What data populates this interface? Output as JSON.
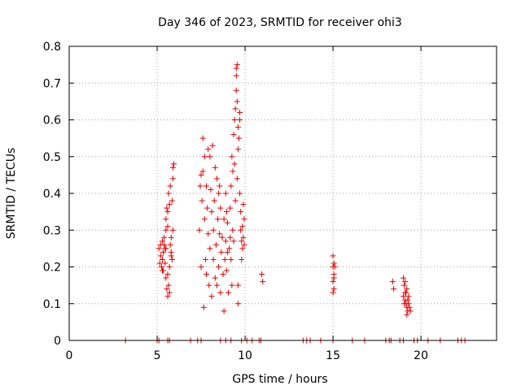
{
  "chart_data": {
    "type": "scatter",
    "title": "Day 346 of 2023, SRMTID for receiver ohi3",
    "xlabel": "GPS time / hours",
    "ylabel": "SRMTID / TECUs",
    "xlim": [
      0,
      24.3
    ],
    "ylim": [
      0,
      0.8
    ],
    "xticks": [
      0,
      5,
      10,
      15,
      20
    ],
    "xtick_labels": [
      "0",
      "5",
      "10",
      "15",
      "20"
    ],
    "yticks": [
      0,
      0.1,
      0.2,
      0.3,
      0.4,
      0.5,
      0.6,
      0.7,
      0.8
    ],
    "ytick_labels": [
      "0",
      "0.1",
      "0.2",
      "0.3",
      "0.4",
      "0.5",
      "0.6",
      "0.7",
      "0.8"
    ],
    "grid": true,
    "marker": "+",
    "color": "#e00000",
    "series": [
      {
        "name": "SRMTID",
        "points": [
          [
            5.1,
            0.25
          ],
          [
            5.15,
            0.21
          ],
          [
            5.2,
            0.26
          ],
          [
            5.2,
            0.23
          ],
          [
            5.25,
            0.2
          ],
          [
            5.3,
            0.27
          ],
          [
            5.3,
            0.22
          ],
          [
            5.35,
            0.24
          ],
          [
            5.35,
            0.19
          ],
          [
            5.4,
            0.26
          ],
          [
            5.4,
            0.28
          ],
          [
            5.45,
            0.21
          ],
          [
            5.5,
            0.33
          ],
          [
            5.5,
            0.3
          ],
          [
            5.5,
            0.25
          ],
          [
            5.55,
            0.36
          ],
          [
            5.55,
            0.14
          ],
          [
            5.6,
            0.12
          ],
          [
            5.6,
            0.18
          ],
          [
            5.6,
            0.31
          ],
          [
            5.65,
            0.4
          ],
          [
            5.65,
            0.15
          ],
          [
            5.7,
            0.37
          ],
          [
            5.7,
            0.13
          ],
          [
            5.75,
            0.42
          ],
          [
            5.75,
            0.26
          ],
          [
            5.8,
            0.24
          ],
          [
            5.8,
            0.28
          ],
          [
            5.85,
            0.38
          ],
          [
            5.9,
            0.44
          ],
          [
            5.9,
            0.47
          ],
          [
            5.95,
            0.48
          ],
          [
            5.9,
            0.3
          ],
          [
            5.85,
            0.22
          ],
          [
            5.7,
            0.2
          ],
          [
            5.5,
            0.17
          ],
          [
            5.6,
            0.35
          ],
          [
            5.8,
            0.23
          ],
          [
            5.45,
            0.25
          ],
          [
            5.3,
            0.19
          ],
          [
            7.4,
            0.3
          ],
          [
            7.45,
            0.42
          ],
          [
            7.5,
            0.45
          ],
          [
            7.5,
            0.2
          ],
          [
            7.55,
            0.38
          ],
          [
            7.6,
            0.55
          ],
          [
            7.6,
            0.46
          ],
          [
            7.65,
            0.09
          ],
          [
            7.7,
            0.5
          ],
          [
            7.7,
            0.33
          ],
          [
            7.75,
            0.22
          ],
          [
            7.8,
            0.18
          ],
          [
            7.8,
            0.42
          ],
          [
            7.85,
            0.36
          ],
          [
            7.9,
            0.29
          ],
          [
            7.9,
            0.52
          ],
          [
            7.95,
            0.15
          ],
          [
            8.0,
            0.5
          ],
          [
            8.0,
            0.25
          ],
          [
            8.05,
            0.41
          ],
          [
            8.1,
            0.35
          ],
          [
            8.1,
            0.12
          ],
          [
            8.15,
            0.53
          ],
          [
            8.2,
            0.3
          ],
          [
            8.2,
            0.22
          ],
          [
            8.25,
            0.38
          ],
          [
            8.3,
            0.47
          ],
          [
            8.3,
            0.17
          ],
          [
            8.35,
            0.26
          ],
          [
            8.4,
            0.44
          ],
          [
            8.4,
            0.15
          ],
          [
            8.45,
            0.33
          ],
          [
            8.5,
            0.2
          ],
          [
            8.5,
            0.4
          ],
          [
            8.55,
            0.29
          ],
          [
            8.6,
            0.36
          ],
          [
            8.6,
            0.13
          ],
          [
            8.65,
            0.24
          ],
          [
            8.7,
            0.28
          ],
          [
            8.75,
            0.18
          ],
          [
            8.8,
            0.33
          ],
          [
            8.8,
            0.08
          ],
          [
            8.85,
            0.22
          ],
          [
            8.9,
            0.4
          ],
          [
            8.9,
            0.27
          ],
          [
            8.95,
            0.19
          ],
          [
            9.0,
            0.24
          ],
          [
            9.0,
            0.32
          ],
          [
            9.05,
            0.13
          ],
          [
            9.1,
            0.25
          ],
          [
            9.15,
            0.36
          ],
          [
            9.2,
            0.42
          ],
          [
            9.2,
            0.22
          ],
          [
            9.25,
            0.5
          ],
          [
            9.3,
            0.46
          ],
          [
            9.3,
            0.3
          ],
          [
            9.35,
            0.56
          ],
          [
            9.4,
            0.6
          ],
          [
            9.4,
            0.48
          ],
          [
            9.45,
            0.63
          ],
          [
            9.5,
            0.74
          ],
          [
            9.5,
            0.72
          ],
          [
            9.5,
            0.68
          ],
          [
            9.55,
            0.75
          ],
          [
            9.55,
            0.65
          ],
          [
            9.6,
            0.58
          ],
          [
            9.6,
            0.52
          ],
          [
            9.6,
            0.1
          ],
          [
            9.65,
            0.55
          ],
          [
            9.7,
            0.6
          ],
          [
            9.7,
            0.62
          ],
          [
            9.7,
            0.4
          ],
          [
            9.75,
            0.35
          ],
          [
            9.75,
            0.3
          ],
          [
            9.8,
            0.27
          ],
          [
            9.8,
            0.22
          ],
          [
            9.85,
            0.31
          ],
          [
            9.85,
            0.25
          ],
          [
            9.9,
            0.28
          ],
          [
            9.9,
            0.37
          ],
          [
            9.95,
            0.33
          ],
          [
            9.95,
            0.26
          ],
          [
            9.45,
            0.38
          ],
          [
            9.35,
            0.27
          ],
          [
            9.25,
            0.15
          ],
          [
            9.6,
            0.15
          ],
          [
            9.55,
            0.44
          ],
          [
            9.15,
            0.28
          ],
          [
            8.95,
            0.35
          ],
          [
            8.55,
            0.42
          ],
          [
            10.95,
            0.18
          ],
          [
            11.0,
            0.16
          ],
          [
            15.0,
            0.23
          ],
          [
            15.05,
            0.21
          ],
          [
            15.0,
            0.2
          ],
          [
            15.05,
            0.18
          ],
          [
            15.0,
            0.16
          ],
          [
            15.05,
            0.14
          ],
          [
            15.0,
            0.13
          ],
          [
            15.1,
            0.2
          ],
          [
            15.05,
            0.17
          ],
          [
            18.4,
            0.16
          ],
          [
            18.45,
            0.14
          ],
          [
            19.0,
            0.17
          ],
          [
            19.05,
            0.15
          ],
          [
            19.1,
            0.13
          ],
          [
            19.1,
            0.11
          ],
          [
            19.15,
            0.1
          ],
          [
            19.2,
            0.09
          ],
          [
            19.2,
            0.07
          ],
          [
            19.25,
            0.08
          ],
          [
            19.3,
            0.1
          ],
          [
            19.3,
            0.12
          ],
          [
            19.0,
            0.12
          ],
          [
            19.1,
            0.16
          ],
          [
            19.2,
            0.14
          ],
          [
            19.25,
            0.11
          ],
          [
            19.35,
            0.09
          ],
          [
            19.4,
            0.08
          ],
          [
            19.15,
            0.13
          ],
          [
            19.05,
            0.1
          ],
          [
            3.2,
            0.0
          ],
          [
            5.0,
            0.0
          ],
          [
            5.1,
            0.0
          ],
          [
            5.6,
            0.0
          ],
          [
            5.7,
            0.0
          ],
          [
            6.9,
            0.0
          ],
          [
            7.3,
            0.0
          ],
          [
            7.5,
            0.0
          ],
          [
            8.6,
            0.0
          ],
          [
            8.9,
            0.0
          ],
          [
            9.2,
            0.0
          ],
          [
            9.8,
            0.0
          ],
          [
            10.1,
            0.0
          ],
          [
            10.4,
            0.0
          ],
          [
            10.8,
            0.0
          ],
          [
            10.9,
            0.0
          ],
          [
            13.3,
            0.0
          ],
          [
            13.5,
            0.0
          ],
          [
            13.7,
            0.0
          ],
          [
            14.3,
            0.0
          ],
          [
            15.0,
            0.0
          ],
          [
            16.1,
            0.0
          ],
          [
            16.8,
            0.0
          ],
          [
            18.0,
            0.0
          ],
          [
            18.2,
            0.0
          ],
          [
            18.3,
            0.0
          ],
          [
            18.8,
            0.0
          ],
          [
            19.0,
            0.0
          ],
          [
            19.6,
            0.0
          ],
          [
            19.8,
            0.0
          ],
          [
            20.4,
            0.0
          ],
          [
            21.1,
            0.0
          ],
          [
            22.1,
            0.0
          ],
          [
            22.3,
            0.0
          ],
          [
            22.5,
            0.0
          ]
        ]
      }
    ]
  }
}
